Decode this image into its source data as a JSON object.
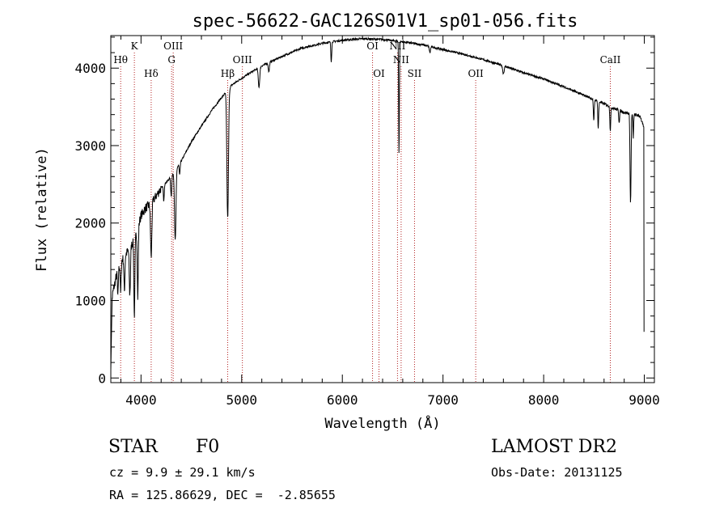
{
  "chart_data": {
    "type": "line",
    "title": "spec-56622-GAC126S01V1_sp01-056.fits",
    "xlabel": "Wavelength (Å)",
    "ylabel": "Flux (relative)",
    "xlim": [
      3700,
      9100
    ],
    "ylim": [
      -60,
      4420
    ],
    "xticks": [
      4000,
      5000,
      6000,
      7000,
      8000,
      9000
    ],
    "yticks": [
      0,
      1000,
      2000,
      3000,
      4000
    ],
    "xtick_labels": [
      "4000",
      "5000",
      "6000",
      "7000",
      "8000",
      "9000"
    ],
    "ytick_labels": [
      "0",
      "1000",
      "2000",
      "3000",
      "4000"
    ],
    "continuum": {
      "x": [
        3700,
        3720,
        3760,
        3800,
        3850,
        3900,
        3950,
        4000,
        4050,
        4100,
        4200,
        4300,
        4400,
        4500,
        4600,
        4700,
        4800,
        4900,
        5000,
        5200,
        5400,
        5600,
        5800,
        6000,
        6200,
        6400,
        6600,
        6800,
        7000,
        7200,
        7400,
        7600,
        7800,
        8000,
        8200,
        8400,
        8600,
        8700,
        8800,
        8900,
        8960,
        9000
      ],
      "y": [
        900,
        1100,
        1350,
        1500,
        1600,
        1700,
        1850,
        2100,
        2200,
        2250,
        2450,
        2600,
        2800,
        3050,
        3250,
        3450,
        3620,
        3780,
        3870,
        4030,
        4150,
        4260,
        4320,
        4360,
        4380,
        4370,
        4340,
        4300,
        4240,
        4180,
        4110,
        4030,
        3940,
        3860,
        3760,
        3650,
        3540,
        3480,
        3430,
        3400,
        3380,
        3200
      ]
    },
    "absorption_features": [
      {
        "wavelength": 3770,
        "depth": 350,
        "width": 6
      },
      {
        "wavelength": 3798,
        "depth": 400,
        "width": 6
      },
      {
        "wavelength": 3835,
        "depth": 450,
        "width": 7
      },
      {
        "wavelength": 3889,
        "depth": 600,
        "width": 8
      },
      {
        "wavelength": 3934,
        "depth": 1000,
        "width": 7
      },
      {
        "wavelength": 3968,
        "depth": 900,
        "width": 7
      },
      {
        "wavelength": 4101,
        "depth": 700,
        "width": 9
      },
      {
        "wavelength": 4226,
        "depth": 200,
        "width": 6
      },
      {
        "wavelength": 4300,
        "depth": 250,
        "width": 7
      },
      {
        "wavelength": 4340,
        "depth": 900,
        "width": 10
      },
      {
        "wavelength": 4384,
        "depth": 150,
        "width": 6
      },
      {
        "wavelength": 4861,
        "depth": 1650,
        "width": 11
      },
      {
        "wavelength": 5172,
        "depth": 250,
        "width": 10
      },
      {
        "wavelength": 5270,
        "depth": 120,
        "width": 8
      },
      {
        "wavelength": 5890,
        "depth": 250,
        "width": 6
      },
      {
        "wavelength": 6563,
        "depth": 1450,
        "width": 5
      },
      {
        "wavelength": 6870,
        "depth": 80,
        "width": 8
      },
      {
        "wavelength": 7600,
        "depth": 100,
        "width": 10
      },
      {
        "wavelength": 8498,
        "depth": 280,
        "width": 6
      },
      {
        "wavelength": 8542,
        "depth": 350,
        "width": 6
      },
      {
        "wavelength": 8662,
        "depth": 300,
        "width": 6
      },
      {
        "wavelength": 8750,
        "depth": 150,
        "width": 6
      },
      {
        "wavelength": 8863,
        "depth": 1150,
        "width": 7
      },
      {
        "wavelength": 8890,
        "depth": 300,
        "width": 5
      }
    ],
    "line_markers": [
      {
        "label": "Hθ",
        "wavelength": 3798,
        "row": 2
      },
      {
        "label": "K",
        "wavelength": 3934,
        "row": 1
      },
      {
        "label": "Hδ",
        "wavelength": 4101,
        "row": 3
      },
      {
        "label": "OIII",
        "wavelength": 4320,
        "row": 1
      },
      {
        "label": "G",
        "wavelength": 4304,
        "row": 2
      },
      {
        "label": "Hβ",
        "wavelength": 4861,
        "row": 3
      },
      {
        "label": "OIII",
        "wavelength": 5007,
        "row": 2
      },
      {
        "label": "OI",
        "wavelength": 6300,
        "row": 1
      },
      {
        "label": "OI",
        "wavelength": 6364,
        "row": 3
      },
      {
        "label": "NII",
        "wavelength": 6548,
        "row": 1
      },
      {
        "label": "NII",
        "wavelength": 6584,
        "row": 2
      },
      {
        "label": "SII",
        "wavelength": 6717,
        "row": 3
      },
      {
        "label": "OII",
        "wavelength": 7325,
        "row": 3
      },
      {
        "label": "CaII",
        "wavelength": 8662,
        "row": 2
      }
    ]
  },
  "info": {
    "class": "STAR",
    "subclass": "F0",
    "cz": "cz = 9.9 ± 29.1 km/s",
    "coords": "RA = 125.86629, DEC =  -2.85655",
    "survey": "LAMOST DR2",
    "obs_date": "Obs-Date: 20131125"
  }
}
